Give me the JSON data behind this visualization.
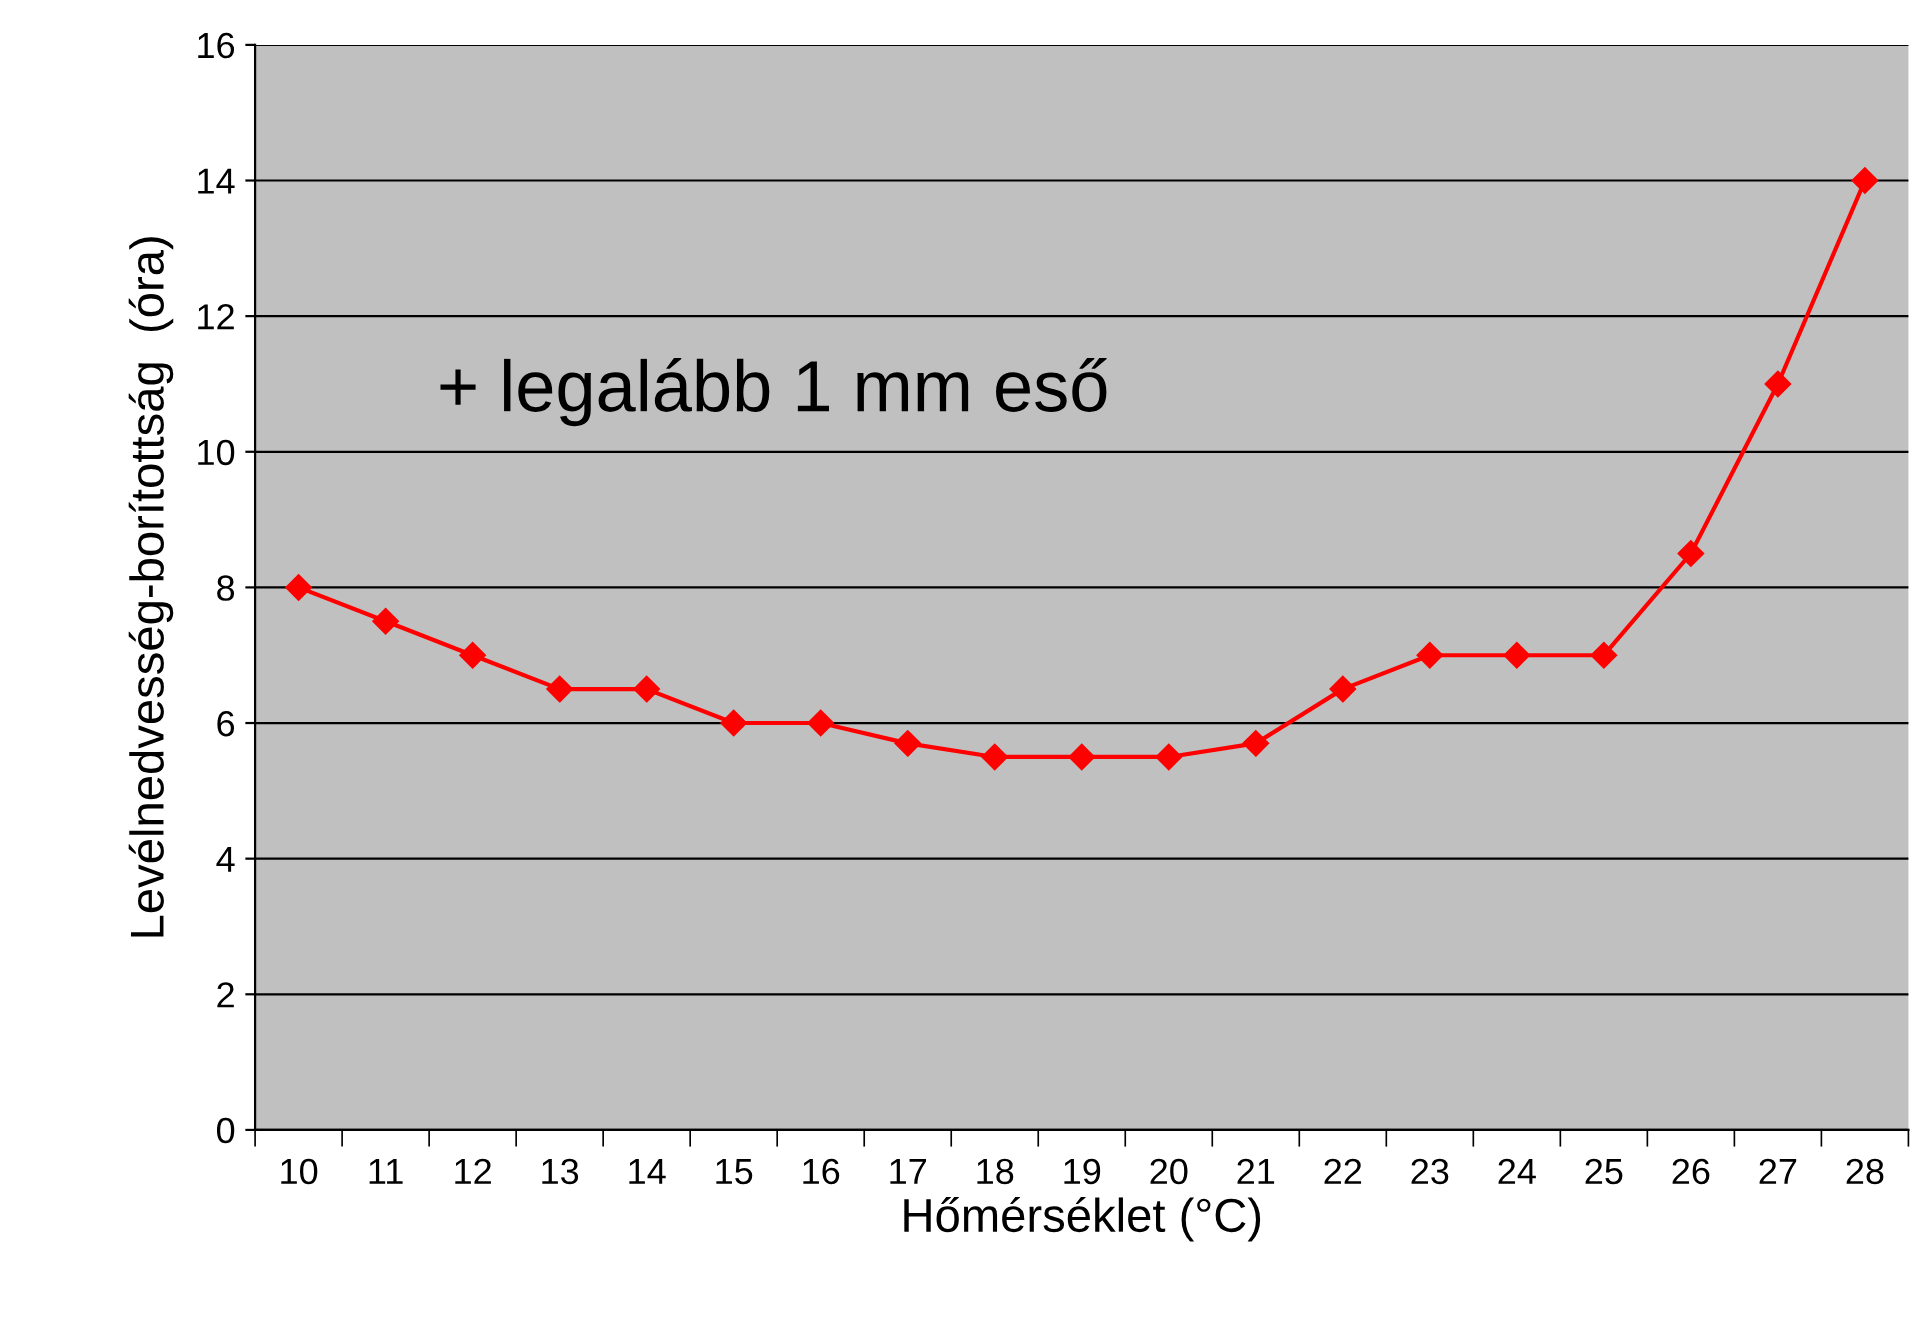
{
  "chart_data": {
    "type": "line",
    "xlabel": "Hőmérséklet (°C)",
    "ylabel": "Levélnedvesség-borítottság  (óra)",
    "categories": [
      "10",
      "11",
      "12",
      "13",
      "14",
      "15",
      "16",
      "17",
      "18",
      "19",
      "20",
      "21",
      "22",
      "23",
      "24",
      "25",
      "26",
      "27",
      "28"
    ],
    "series": [
      {
        "color": "#ff0000",
        "values": [
          8,
          7.5,
          7,
          6.5,
          6.5,
          6,
          6,
          5.7,
          5.5,
          5.5,
          5.5,
          5.7,
          6.5,
          7,
          7,
          7,
          8.5,
          11,
          14
        ]
      }
    ],
    "ylim": [
      0,
      16
    ],
    "yticks": [
      0,
      2,
      4,
      6,
      8,
      10,
      12,
      14,
      16
    ],
    "grid": "y",
    "legend": false,
    "marker": "diamond",
    "line_style": "solid",
    "annotations": [
      "+ legalább 1 mm eső"
    ]
  }
}
